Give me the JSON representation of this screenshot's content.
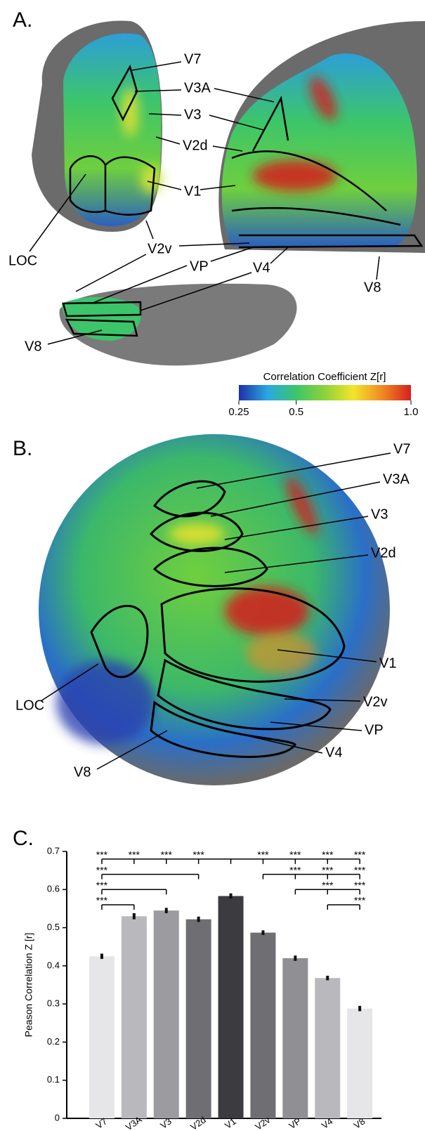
{
  "panel_a": {
    "letter": "A.",
    "labels": [
      "V7",
      "V3A",
      "V3",
      "V2d",
      "V1",
      "LOC",
      "V2v",
      "VP",
      "V4",
      "V8",
      "V8"
    ],
    "colorbar": {
      "title": "Correlation Coefficient Z[r]",
      "lim": [
        0.25,
        1.0
      ],
      "ticks": [
        0.25,
        0.5,
        {
          "value": 1.0,
          "label": "1.0"
        }
      ],
      "colors": [
        "#1f2fa8",
        "#2aa8e0",
        "#3cc56a",
        "#8fd23a",
        "#f3e52a",
        "#f08a22",
        "#d61f1f"
      ]
    }
  },
  "panel_b": {
    "letter": "B.",
    "labels": [
      "V7",
      "V3A",
      "V3",
      "V2d",
      "V1",
      "V2v",
      "VP",
      "V4",
      "V8",
      "LOC"
    ]
  },
  "panel_c": {
    "letter": "C."
  },
  "chart_data": {
    "type": "bar",
    "y_label": "Peason Correlation Z [r]",
    "categories": [
      "V7",
      "V3A",
      "V3",
      "V2d",
      "V1",
      "V2v",
      "VP",
      "V4",
      "V8"
    ],
    "values": [
      0.425,
      0.53,
      0.545,
      0.522,
      0.583,
      0.487,
      0.42,
      0.368,
      0.288
    ],
    "errors": [
      0.007,
      0.008,
      0.007,
      0.007,
      0.007,
      0.006,
      0.007,
      0.006,
      0.007
    ],
    "colors": [
      "#e6e6e9",
      "#b9b9bd",
      "#9b9ba0",
      "#6e6e73",
      "#3b3b40",
      "#6e6e73",
      "#8f8f94",
      "#b9b9bd",
      "#e6e6e9"
    ],
    "ylim": [
      0,
      0.7
    ],
    "yticks": [
      0,
      0.1,
      0.2,
      0.3,
      0.4,
      0.5,
      0.6,
      0.7
    ],
    "brackets": [
      {
        "level": 0.68,
        "from": "V1",
        "to": [
          "V7",
          "V3A",
          "V3",
          "V2d",
          "V2v",
          "VP",
          "V4",
          "V8"
        ],
        "label": "***"
      },
      {
        "level": 0.64,
        "from": "V2d",
        "to": [
          "V7"
        ],
        "label": "***"
      },
      {
        "level": 0.64,
        "from": "V2v",
        "to": [
          "VP",
          "V4",
          "V8"
        ],
        "label": "***"
      },
      {
        "level": 0.6,
        "from": "V3",
        "to": [
          "V7"
        ],
        "label": "***"
      },
      {
        "level": 0.6,
        "from": "VP",
        "to": [
          "V4",
          "V8"
        ],
        "label": "***"
      },
      {
        "level": 0.56,
        "from": "V3A",
        "to": [
          "V7"
        ],
        "label": "***"
      },
      {
        "level": 0.56,
        "from": "V4",
        "to": [
          "V8"
        ],
        "label": "***"
      }
    ]
  }
}
